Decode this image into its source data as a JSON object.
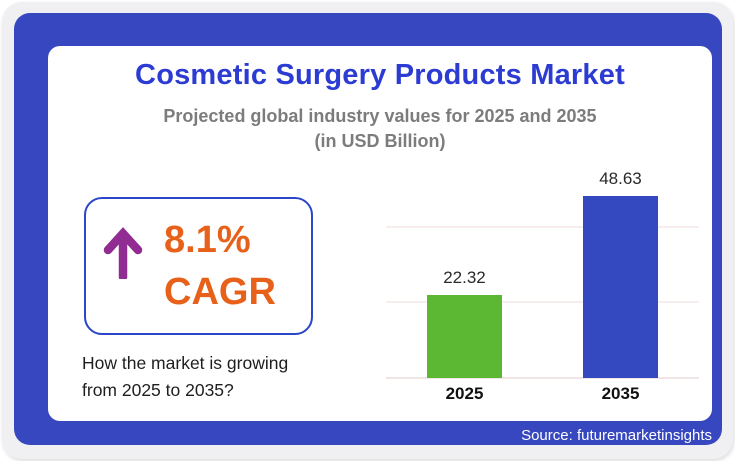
{
  "colors": {
    "page_bg": "#f0f0f2",
    "frame_blue": "#3647c0",
    "card_bg": "#ffffff",
    "title_blue": "#2c3cd3",
    "subtitle_gray": "#7c7c7c",
    "accent_orange": "#e8611a",
    "arrow_purple": "#912d92",
    "cagr_box_border": "#2b46c8",
    "bar_green": "#5cb733",
    "bar_blue": "#3448c0",
    "gridline_pink": "#f8eded",
    "source_text_white": "#ffffff"
  },
  "header": {
    "title": "Cosmetic Surgery Products Market",
    "subtitle_line1": "Projected global industry values for 2025 and 2035",
    "subtitle_line2": "(in USD Billion)"
  },
  "cagr": {
    "icon": "up-arrow-icon",
    "value": "8.1%",
    "label": "CAGR"
  },
  "caption": {
    "line1": "How the market is growing",
    "line2": "from 2025 to 2035?"
  },
  "chart_data": {
    "type": "bar",
    "title": "Cosmetic Surgery Products Market",
    "subtitle": "Projected global industry values for 2025 and 2035 (in USD Billion)",
    "categories": [
      "2025",
      "2035"
    ],
    "values": [
      22.32,
      48.63
    ],
    "value_labels": [
      "22.32",
      "48.63"
    ],
    "bar_colors": [
      "#5cb733",
      "#3448c0"
    ],
    "xlabel": "",
    "ylabel": "",
    "ylim": [
      0,
      57.5
    ],
    "gridlines_y": [
      20,
      40
    ],
    "grid": "horizontal-only, unlabeled ticks",
    "legend": "none"
  },
  "footer": {
    "source": "Source: futuremarketinsights"
  }
}
